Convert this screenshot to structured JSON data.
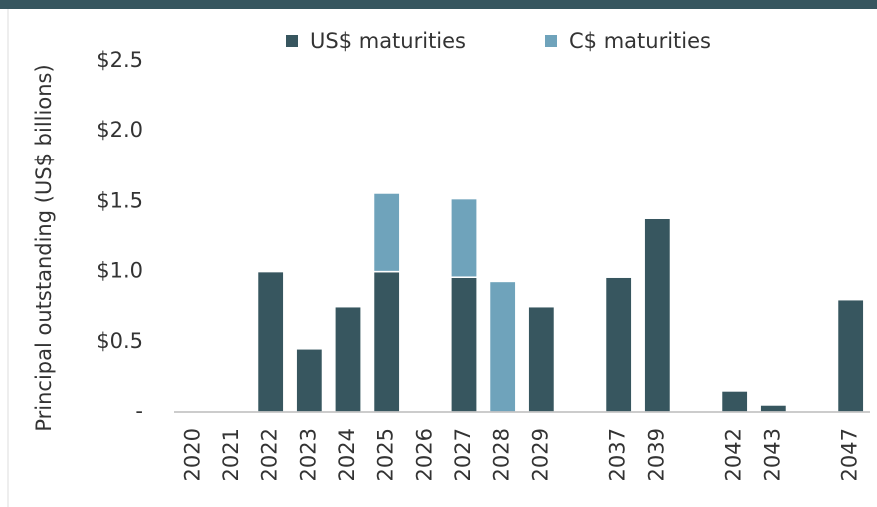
{
  "chart_data": {
    "type": "stacked_bar",
    "ylabel": "Principal outstanding (US$ billions)",
    "categories": [
      "2020",
      "2021",
      "2022",
      "2023",
      "2024",
      "2025",
      "2026",
      "2027",
      "2028",
      "2029",
      null,
      "2037",
      "2039",
      null,
      "2042",
      "2043",
      null,
      "2047"
    ],
    "series": [
      {
        "name": "US$ maturities",
        "color": "#37565f",
        "values": [
          0,
          0,
          1.0,
          0.45,
          0.75,
          1.0,
          0,
          0.96,
          0,
          0.75,
          null,
          0.96,
          1.38,
          null,
          0.15,
          0.05,
          null,
          0.8
        ]
      },
      {
        "name": "C$ maturities",
        "color": "#6fa3bb",
        "values": [
          0,
          0,
          0,
          0,
          0,
          0.56,
          0,
          0.56,
          0.93,
          0,
          null,
          0,
          0,
          null,
          0,
          0,
          null,
          0
        ]
      }
    ],
    "ylim": [
      0,
      2.5
    ],
    "yticks": [
      {
        "value": 0,
        "label": "-"
      },
      {
        "value": 0.5,
        "label": "$0.5"
      },
      {
        "value": 1.0,
        "label": "$1.0"
      },
      {
        "value": 1.5,
        "label": "$1.5"
      },
      {
        "value": 2.0,
        "label": "$2.0"
      },
      {
        "value": 2.5,
        "label": "$2.5"
      }
    ],
    "legend": "top"
  }
}
